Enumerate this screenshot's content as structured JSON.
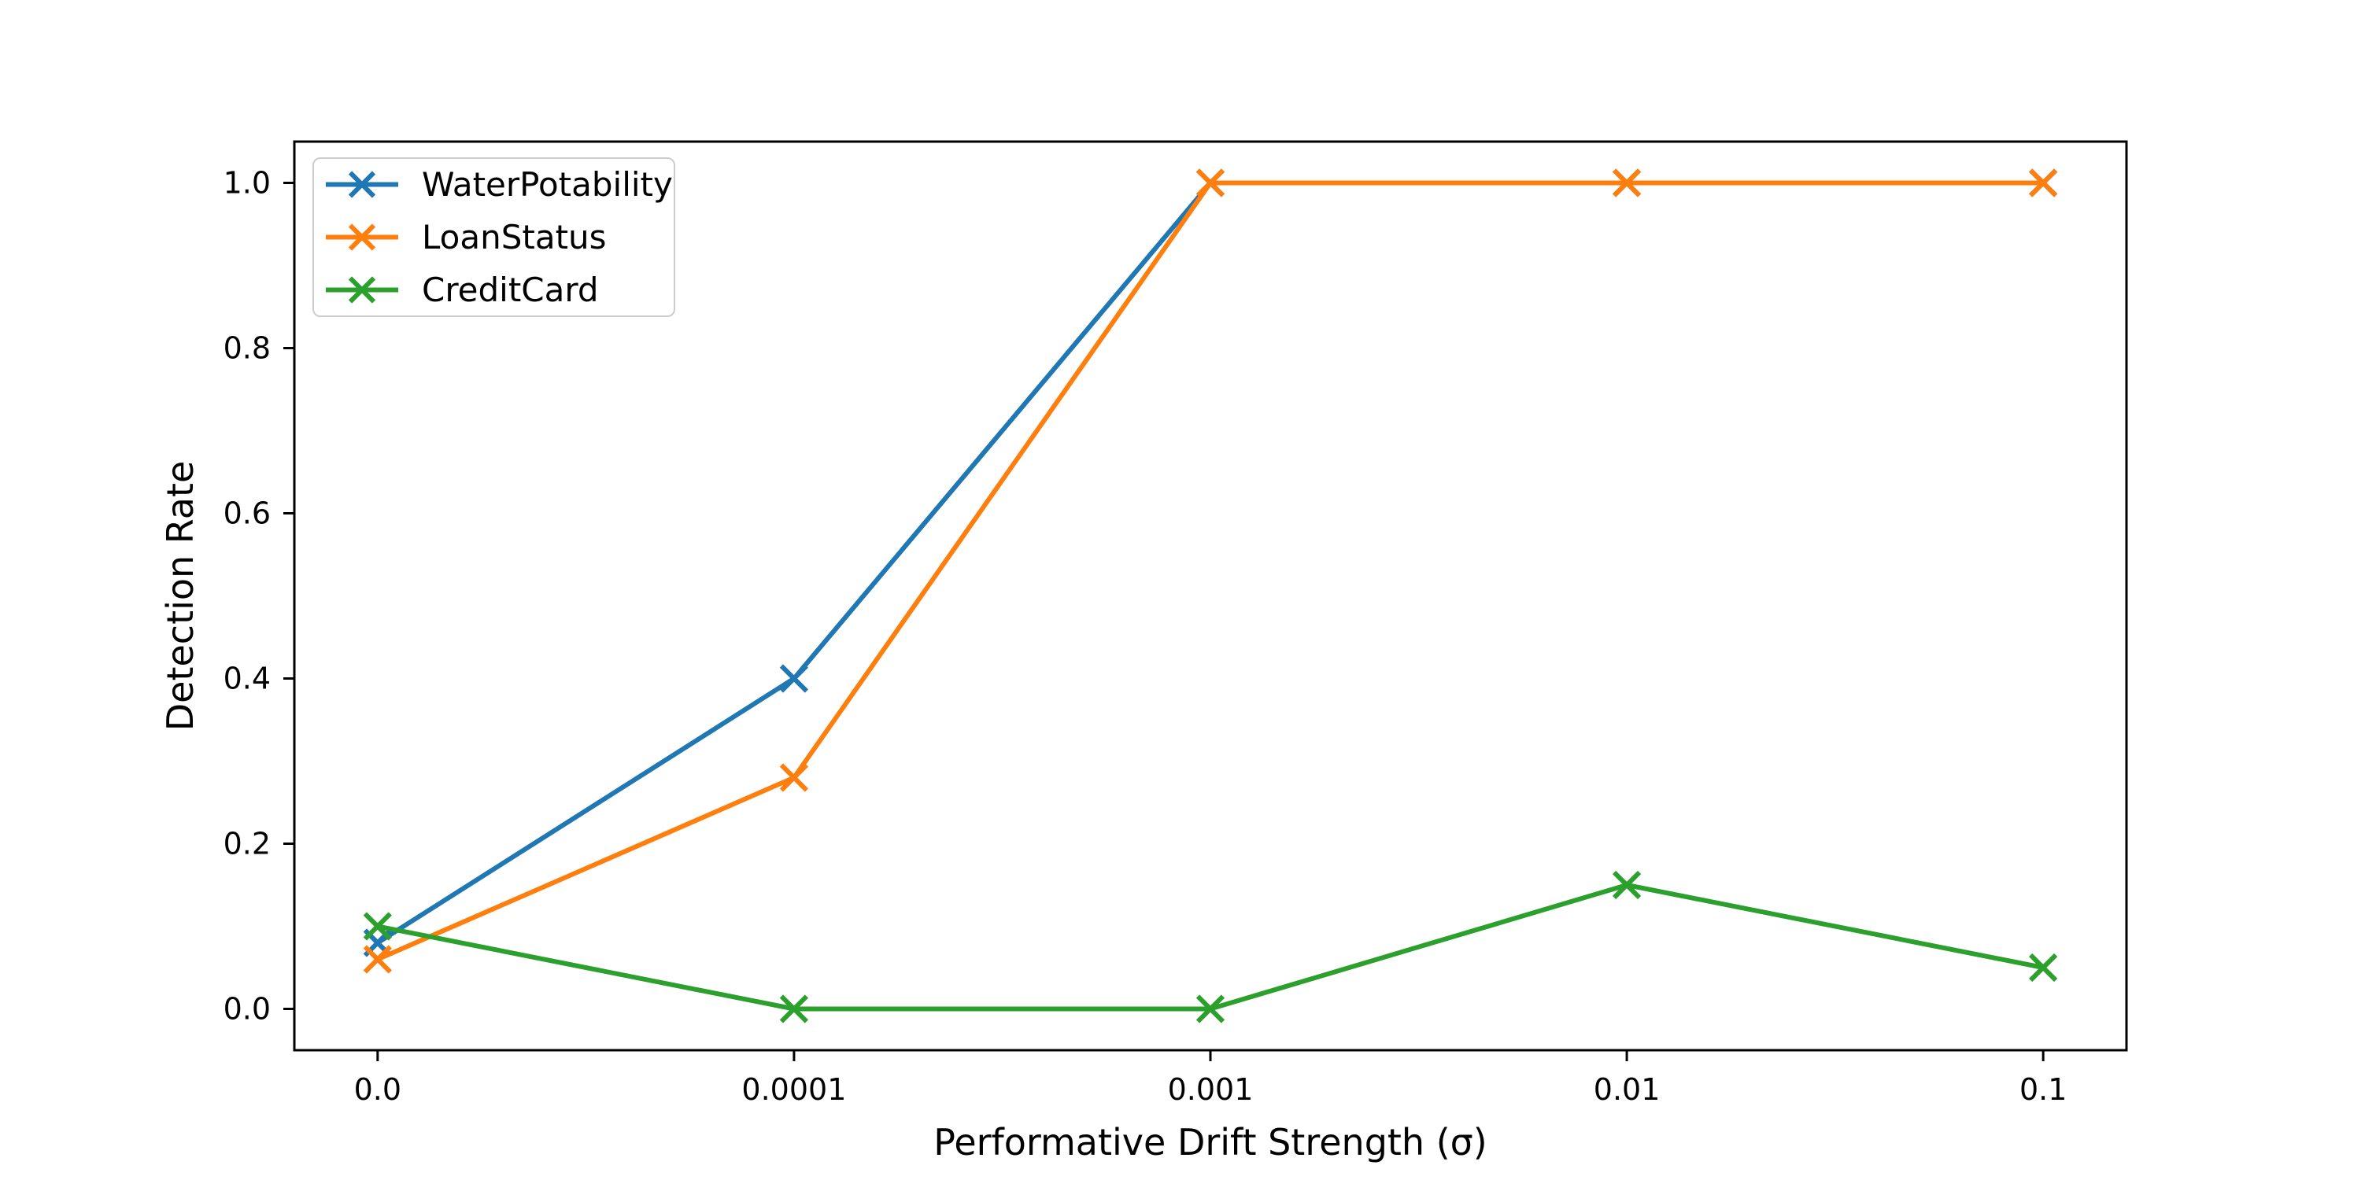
{
  "chart_data": {
    "type": "line",
    "title": "",
    "xlabel": "Performative Drift Strength (σ)",
    "ylabel": "Detection Rate",
    "categories": [
      "0.0",
      "0.0001",
      "0.001",
      "0.01",
      "0.1"
    ],
    "yticks": [
      "0.0",
      "0.2",
      "0.4",
      "0.6",
      "0.8",
      "1.0"
    ],
    "ytick_values": [
      0.0,
      0.2,
      0.4,
      0.6,
      0.8,
      1.0
    ],
    "ylim": [
      -0.05,
      1.05
    ],
    "grid": false,
    "marker": "x",
    "legend_position": "upper-left",
    "legend_border_color": "#cccccc",
    "axis_color": "#000000",
    "series": [
      {
        "name": "WaterPotability",
        "color": "#1f77b4",
        "values": [
          0.08,
          0.4,
          1.0,
          1.0,
          1.0
        ]
      },
      {
        "name": "LoanStatus",
        "color": "#ff7f0e",
        "values": [
          0.06,
          0.28,
          1.0,
          1.0,
          1.0
        ]
      },
      {
        "name": "CreditCard",
        "color": "#2ca02c",
        "values": [
          0.1,
          0.0,
          0.0,
          0.15,
          0.05
        ]
      }
    ]
  }
}
